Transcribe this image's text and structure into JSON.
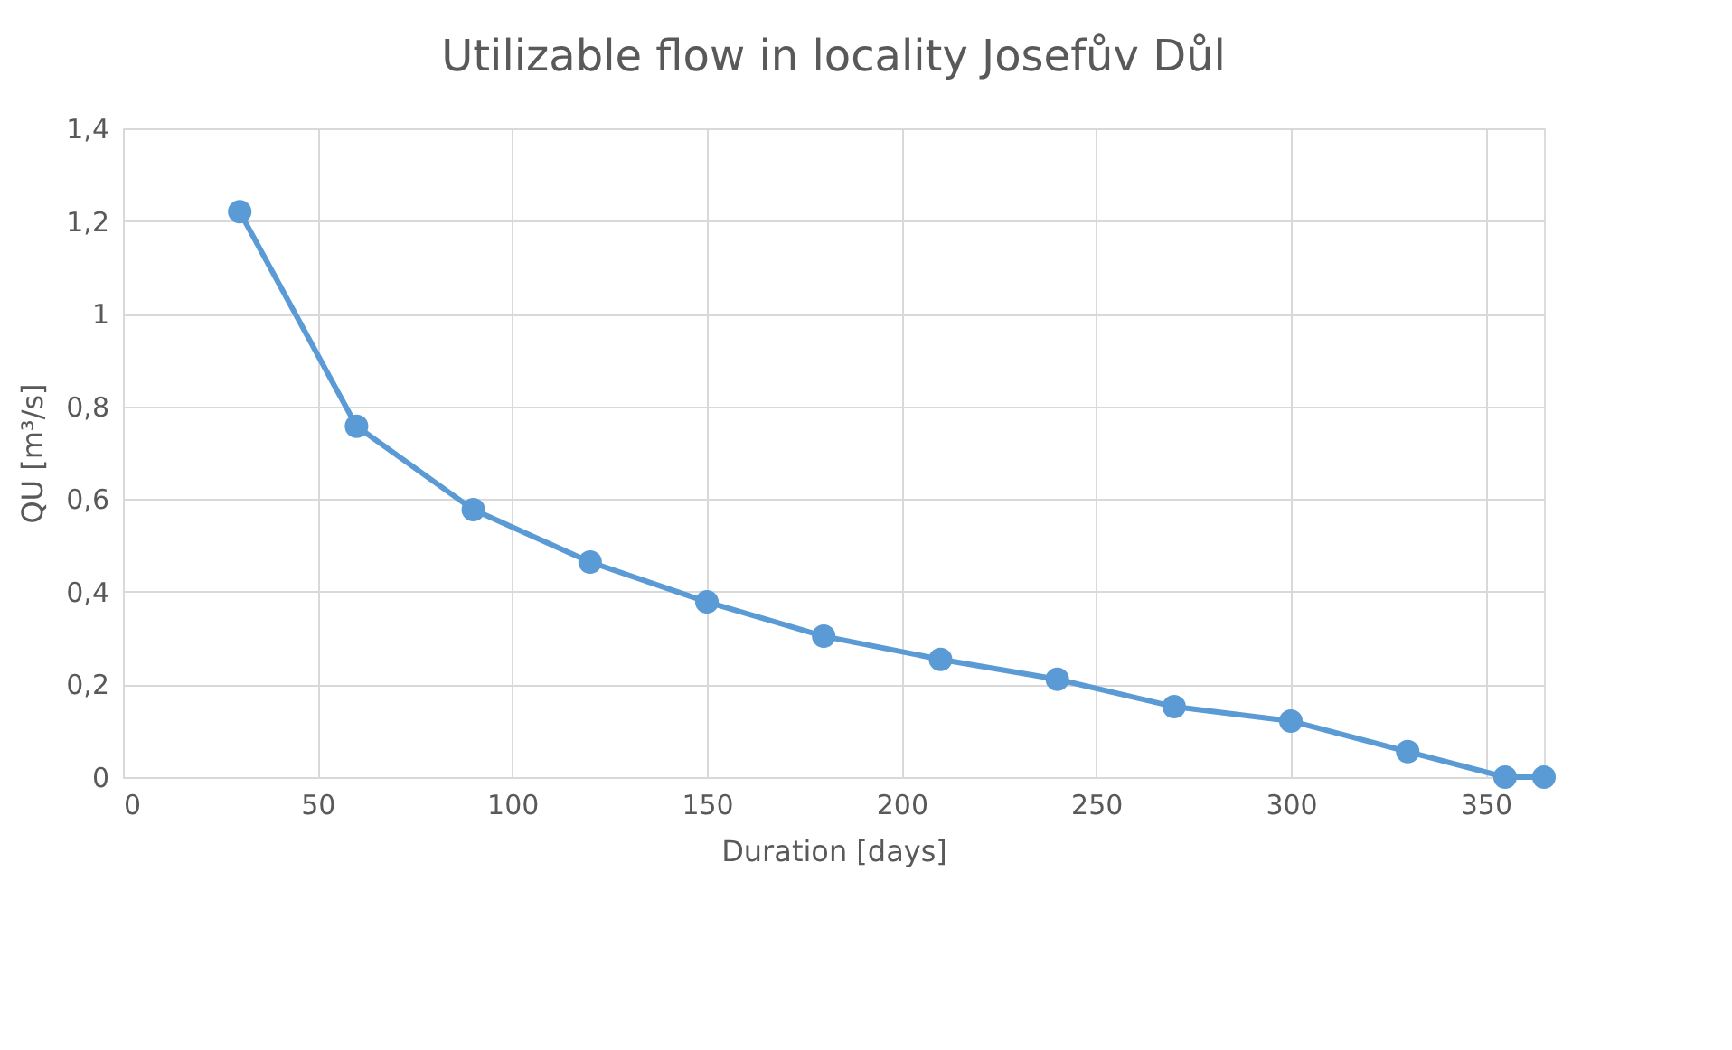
{
  "chart_data": {
    "type": "line",
    "title": "Utilizable flow in locality Josefův Důl",
    "xlabel": "Duration [days]",
    "ylabel": "QU [m³/s]",
    "x": [
      30,
      60,
      90,
      120,
      150,
      180,
      210,
      240,
      270,
      300,
      330,
      355,
      365
    ],
    "series": [
      {
        "color": "#5b9bd5",
        "values": [
          1.22,
          0.757,
          0.577,
          0.464,
          0.378,
          0.304,
          0.254,
          0.211,
          0.152,
          0.121,
          0.055,
          0,
          0
        ]
      }
    ],
    "xlim": [
      0,
      365
    ],
    "xticks": [
      0,
      50,
      100,
      150,
      200,
      250,
      300,
      350
    ],
    "ylim": [
      0,
      1.4
    ],
    "yticks": [
      0,
      {
        "value": 0.2,
        "label": "0,2"
      },
      {
        "value": 0.4,
        "label": "0,4"
      },
      {
        "value": 0.6,
        "label": "0,6"
      },
      {
        "value": 0.8,
        "label": "0,8"
      },
      1,
      {
        "value": 1.2,
        "label": "1,2"
      },
      {
        "value": 1.4,
        "label": "1,4"
      }
    ],
    "grid": true,
    "marker": "circle",
    "line_style": "solid",
    "legend": false
  }
}
